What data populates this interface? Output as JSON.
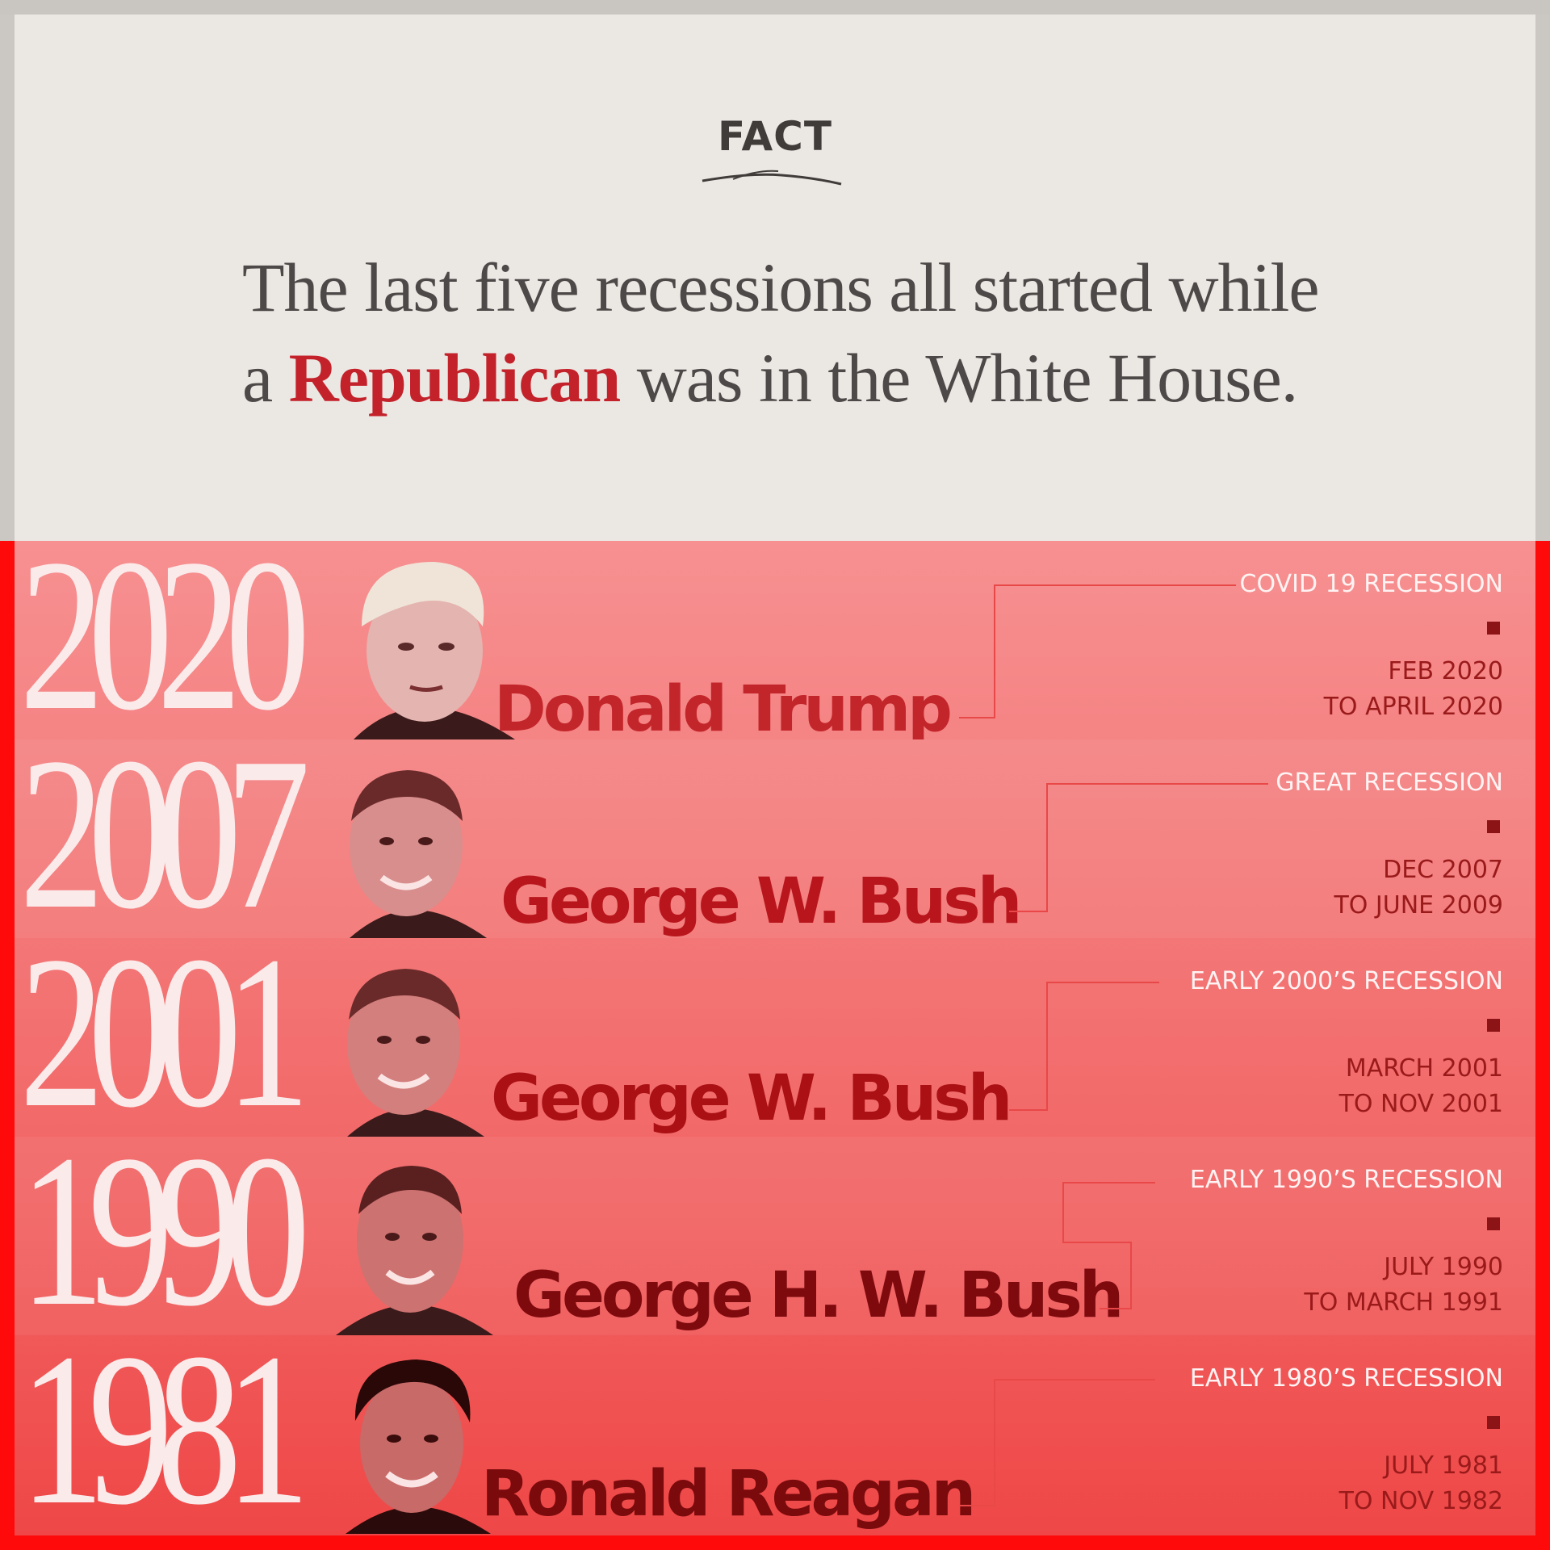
{
  "header": {
    "label": "FACT",
    "headline_part1": "The last five recessions all started while",
    "headline_part2_prefix": "a ",
    "headline_accent": "Republican",
    "headline_part2_suffix": " was in the White House."
  },
  "colors": {
    "accent": "#c4222b",
    "background_light": "#ebe8e4",
    "background_red": "#ff0a0a",
    "marker": "#8d1416"
  },
  "recessions": [
    {
      "year": "2020",
      "president": "Donald Trump",
      "recession": "COVID 19 RECESSION",
      "dates_line1": "FEB 2020",
      "dates_line2": "TO APRIL 2020"
    },
    {
      "year": "2007",
      "president": "George W. Bush",
      "recession": "GREAT RECESSION",
      "dates_line1": "DEC 2007",
      "dates_line2": "TO JUNE 2009"
    },
    {
      "year": "2001",
      "president": "George W. Bush",
      "recession": "EARLY 2000’S RECESSION",
      "dates_line1": "MARCH 2001",
      "dates_line2": "TO NOV 2001"
    },
    {
      "year": "1990",
      "president": "George H. W. Bush",
      "recession": "EARLY 1990’S RECESSION",
      "dates_line1": "JULY 1990",
      "dates_line2": "TO MARCH 1991"
    },
    {
      "year": "1981",
      "president": "Ronald Reagan",
      "recession": "EARLY 1980’S RECESSION",
      "dates_line1": "JULY 1981",
      "dates_line2": "TO NOV 1982"
    }
  ]
}
